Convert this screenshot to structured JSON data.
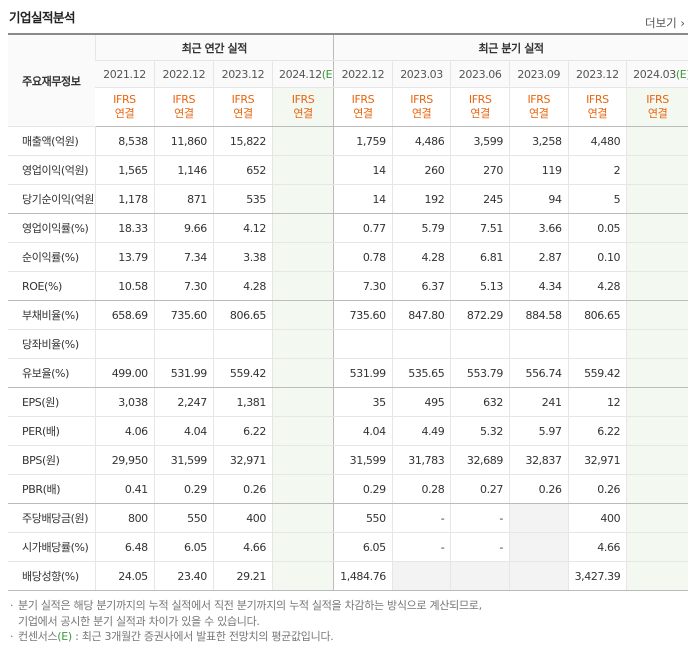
{
  "header": {
    "title": "기업실적분석",
    "more": "더보기"
  },
  "table": {
    "corner": "주요재무정보",
    "groups": [
      "최근 연간 실적",
      "최근 분기 실적"
    ],
    "periods": [
      "2021.12",
      "2022.12",
      "2023.12",
      {
        "date": "2024.12",
        "mark": "(E)"
      },
      "2022.12",
      "2023.03",
      "2023.06",
      "2023.09",
      "2023.12",
      {
        "date": "2024.03",
        "mark": "(E)"
      }
    ],
    "basis": [
      [
        "IFRS",
        "연결"
      ],
      [
        "IFRS",
        "연결"
      ],
      [
        "IFRS",
        "연결"
      ],
      [
        "IFRS",
        "연결"
      ],
      [
        "IFRS",
        "연결"
      ],
      [
        "IFRS",
        "연결"
      ],
      [
        "IFRS",
        "연결"
      ],
      [
        "IFRS",
        "연결"
      ],
      [
        "IFRS",
        "연결"
      ],
      [
        "IFRS",
        "연결"
      ]
    ],
    "rows": [
      {
        "label": "매출액(억원)",
        "values": [
          "8,538",
          "11,860",
          "15,822",
          null,
          "1,759",
          "4,486",
          "3,599",
          "3,258",
          "4,480",
          null
        ]
      },
      {
        "label": "영업이익(억원)",
        "values": [
          "1,565",
          "1,146",
          "652",
          null,
          "14",
          "260",
          "270",
          "119",
          "2",
          null
        ]
      },
      {
        "label": "당기순이익(억원)",
        "values": [
          "1,178",
          "871",
          "535",
          null,
          "14",
          "192",
          "245",
          "94",
          "5",
          null
        ]
      },
      {
        "label": "영업이익률(%)",
        "values": [
          "18.33",
          "9.66",
          "4.12",
          null,
          "0.77",
          "5.79",
          "7.51",
          "3.66",
          "0.05",
          null
        ]
      },
      {
        "label": "순이익률(%)",
        "values": [
          "13.79",
          "7.34",
          "3.38",
          null,
          "0.78",
          "4.28",
          "6.81",
          "2.87",
          "0.10",
          null
        ]
      },
      {
        "label": "ROE(%)",
        "values": [
          "10.58",
          "7.30",
          "4.28",
          null,
          "7.30",
          "6.37",
          "5.13",
          "4.34",
          "4.28",
          null
        ]
      },
      {
        "label": "부채비율(%)",
        "values": [
          "658.69",
          "735.60",
          "806.65",
          null,
          "735.60",
          "847.80",
          "872.29",
          "884.58",
          "806.65",
          null
        ]
      },
      {
        "label": "당좌비율(%)",
        "values": [
          null,
          null,
          null,
          null,
          null,
          null,
          null,
          null,
          null,
          null
        ]
      },
      {
        "label": "유보율(%)",
        "values": [
          "499.00",
          "531.99",
          "559.42",
          null,
          "531.99",
          "535.65",
          "553.79",
          "556.74",
          "559.42",
          null
        ]
      },
      {
        "label": "EPS(원)",
        "values": [
          "3,038",
          "2,247",
          "1,381",
          null,
          "35",
          "495",
          "632",
          "241",
          "12",
          null
        ]
      },
      {
        "label": "PER(배)",
        "values": [
          "4.06",
          "4.04",
          "6.22",
          null,
          "4.04",
          "4.49",
          "5.32",
          "5.97",
          "6.22",
          null
        ]
      },
      {
        "label": "BPS(원)",
        "values": [
          "29,950",
          "31,599",
          "32,971",
          null,
          "31,599",
          "31,783",
          "32,689",
          "32,837",
          "32,971",
          null
        ]
      },
      {
        "label": "PBR(배)",
        "values": [
          "0.41",
          "0.29",
          "0.26",
          null,
          "0.29",
          "0.28",
          "0.27",
          "0.26",
          "0.26",
          null
        ]
      },
      {
        "label": "주당배당금(원)",
        "values": [
          "800",
          "550",
          "400",
          null,
          "550",
          "-",
          "-",
          null,
          "400",
          null
        ]
      },
      {
        "label": "시가배당률(%)",
        "values": [
          "6.48",
          "6.05",
          "4.66",
          null,
          "6.05",
          "-",
          "-",
          null,
          "4.66",
          null
        ]
      },
      {
        "label": "배당성향(%)",
        "values": [
          "24.05",
          "23.40",
          "29.21",
          null,
          "1,484.76",
          null,
          null,
          null,
          "3,427.39",
          null
        ]
      }
    ]
  },
  "notes": [
    [
      "분기 실적은 해당 분기까지의 누적 실적에서 직전 분기까지의 누적 실적을 차감하는 방식으로 계산되므로,",
      "기업에서 공시한 분기 실적과 차이가 있을 수 있습니다."
    ],
    [
      "컨센서스",
      "(E)",
      " : 최근 3개월간 증권사에서 발표한 전망치의 평균값입니다."
    ]
  ]
}
